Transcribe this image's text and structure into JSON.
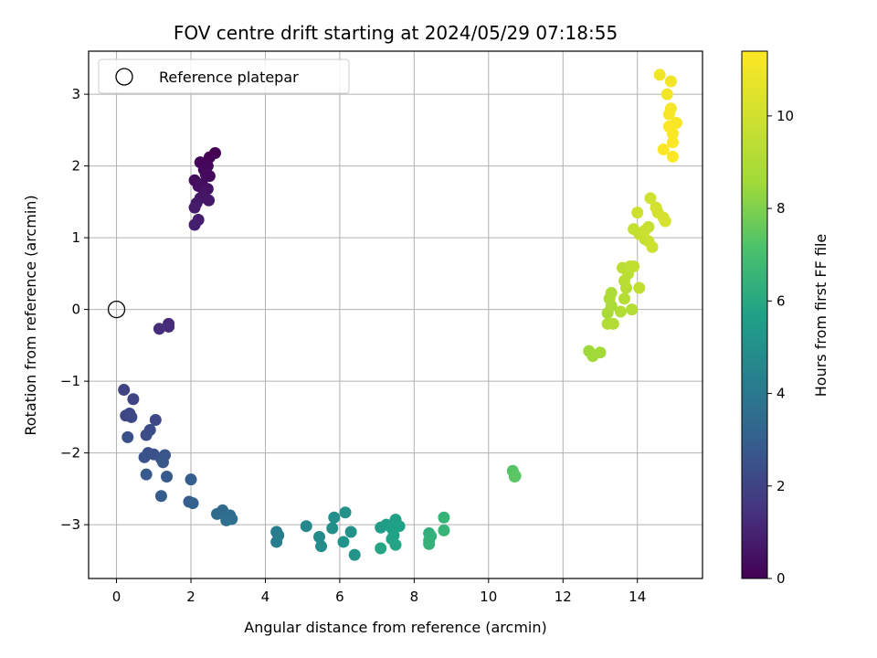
{
  "chart_data": {
    "type": "scatter",
    "title": "FOV centre drift starting at 2024/05/29 07:18:55",
    "xlabel": "Angular distance from reference (arcmin)",
    "ylabel": "Rotation from reference (arcmin)",
    "xlim": [
      -0.75,
      15.75
    ],
    "ylim": [
      -3.75,
      3.6
    ],
    "xticks": [
      "0",
      "2",
      "4",
      "6",
      "8",
      "10",
      "12",
      "14"
    ],
    "yticks": [
      "−3",
      "−2",
      "−1",
      "0",
      "1",
      "2",
      "3"
    ],
    "grid": true,
    "legend": {
      "placement": "top-left",
      "label": "Reference platepar"
    },
    "reference_point": {
      "x": 0,
      "y": 0
    },
    "colorbar": {
      "label": "Hours from first FF file",
      "range": [
        0,
        11.4
      ],
      "ticks": [
        "0",
        "2",
        "4",
        "6",
        "8",
        "10"
      ],
      "colormap": "viridis"
    },
    "points": [
      {
        "x": 2.65,
        "y": 2.18,
        "c": 0.0
      },
      {
        "x": 2.5,
        "y": 2.12,
        "c": 0.05
      },
      {
        "x": 2.25,
        "y": 2.05,
        "c": 0.1
      },
      {
        "x": 2.45,
        "y": 2.0,
        "c": 0.15
      },
      {
        "x": 2.35,
        "y": 1.95,
        "c": 0.2
      },
      {
        "x": 2.4,
        "y": 1.88,
        "c": 0.25
      },
      {
        "x": 2.5,
        "y": 1.86,
        "c": 0.3
      },
      {
        "x": 2.1,
        "y": 1.8,
        "c": 0.35
      },
      {
        "x": 2.3,
        "y": 1.75,
        "c": 0.4
      },
      {
        "x": 2.2,
        "y": 1.72,
        "c": 0.45
      },
      {
        "x": 2.45,
        "y": 1.68,
        "c": 0.5
      },
      {
        "x": 2.35,
        "y": 1.62,
        "c": 0.55
      },
      {
        "x": 2.25,
        "y": 1.55,
        "c": 0.6
      },
      {
        "x": 2.48,
        "y": 1.52,
        "c": 0.65
      },
      {
        "x": 2.15,
        "y": 1.48,
        "c": 0.7
      },
      {
        "x": 2.1,
        "y": 1.42,
        "c": 0.75
      },
      {
        "x": 2.2,
        "y": 1.25,
        "c": 0.8
      },
      {
        "x": 2.1,
        "y": 1.18,
        "c": 0.85
      },
      {
        "x": 1.4,
        "y": -0.2,
        "c": 1.2
      },
      {
        "x": 1.4,
        "y": -0.24,
        "c": 1.25
      },
      {
        "x": 1.15,
        "y": -0.27,
        "c": 1.3
      },
      {
        "x": 0.2,
        "y": -1.12,
        "c": 2.0
      },
      {
        "x": 0.45,
        "y": -1.25,
        "c": 2.05
      },
      {
        "x": 0.35,
        "y": -1.45,
        "c": 2.1
      },
      {
        "x": 0.25,
        "y": -1.48,
        "c": 2.15
      },
      {
        "x": 0.4,
        "y": -1.5,
        "c": 2.2
      },
      {
        "x": 1.05,
        "y": -1.54,
        "c": 2.25
      },
      {
        "x": 0.9,
        "y": -1.68,
        "c": 2.3
      },
      {
        "x": 0.8,
        "y": -1.75,
        "c": 2.35
      },
      {
        "x": 0.3,
        "y": -1.78,
        "c": 2.4
      },
      {
        "x": 0.85,
        "y": -2.0,
        "c": 2.45
      },
      {
        "x": 1.0,
        "y": -2.02,
        "c": 2.5
      },
      {
        "x": 0.75,
        "y": -2.06,
        "c": 2.55
      },
      {
        "x": 1.3,
        "y": -2.03,
        "c": 2.6
      },
      {
        "x": 1.2,
        "y": -2.08,
        "c": 2.65
      },
      {
        "x": 1.25,
        "y": -2.13,
        "c": 2.7
      },
      {
        "x": 1.35,
        "y": -2.33,
        "c": 2.75
      },
      {
        "x": 0.8,
        "y": -2.3,
        "c": 2.8
      },
      {
        "x": 1.2,
        "y": -2.6,
        "c": 2.85
      },
      {
        "x": 2.0,
        "y": -2.37,
        "c": 2.9
      },
      {
        "x": 1.95,
        "y": -2.68,
        "c": 2.95
      },
      {
        "x": 2.05,
        "y": -2.7,
        "c": 3.0
      },
      {
        "x": 2.7,
        "y": -2.85,
        "c": 3.4
      },
      {
        "x": 2.85,
        "y": -2.8,
        "c": 3.45
      },
      {
        "x": 3.05,
        "y": -2.87,
        "c": 3.5
      },
      {
        "x": 2.95,
        "y": -2.9,
        "c": 3.55
      },
      {
        "x": 3.1,
        "y": -2.92,
        "c": 3.6
      },
      {
        "x": 2.95,
        "y": -2.94,
        "c": 3.65
      },
      {
        "x": 4.3,
        "y": -3.1,
        "c": 4.1
      },
      {
        "x": 4.35,
        "y": -3.15,
        "c": 4.15
      },
      {
        "x": 4.3,
        "y": -3.24,
        "c": 4.2
      },
      {
        "x": 5.1,
        "y": -3.02,
        "c": 4.7
      },
      {
        "x": 5.45,
        "y": -3.17,
        "c": 4.75
      },
      {
        "x": 5.5,
        "y": -3.3,
        "c": 4.8
      },
      {
        "x": 5.85,
        "y": -2.9,
        "c": 4.9
      },
      {
        "x": 5.8,
        "y": -3.05,
        "c": 4.95
      },
      {
        "x": 6.15,
        "y": -2.83,
        "c": 5.0
      },
      {
        "x": 6.3,
        "y": -3.1,
        "c": 5.05
      },
      {
        "x": 6.1,
        "y": -3.24,
        "c": 5.1
      },
      {
        "x": 6.4,
        "y": -3.42,
        "c": 5.15
      },
      {
        "x": 7.1,
        "y": -3.04,
        "c": 5.5
      },
      {
        "x": 7.25,
        "y": -3.0,
        "c": 5.55
      },
      {
        "x": 7.5,
        "y": -2.93,
        "c": 5.6
      },
      {
        "x": 7.4,
        "y": -3.05,
        "c": 5.65
      },
      {
        "x": 7.6,
        "y": -3.02,
        "c": 5.7
      },
      {
        "x": 7.45,
        "y": -3.15,
        "c": 5.75
      },
      {
        "x": 7.4,
        "y": -3.2,
        "c": 5.8
      },
      {
        "x": 7.5,
        "y": -3.28,
        "c": 5.85
      },
      {
        "x": 7.1,
        "y": -3.33,
        "c": 5.9
      },
      {
        "x": 8.4,
        "y": -3.12,
        "c": 6.3
      },
      {
        "x": 8.45,
        "y": -3.16,
        "c": 6.35
      },
      {
        "x": 8.4,
        "y": -3.22,
        "c": 6.4
      },
      {
        "x": 8.4,
        "y": -3.27,
        "c": 6.45
      },
      {
        "x": 8.8,
        "y": -2.9,
        "c": 6.5
      },
      {
        "x": 8.8,
        "y": -3.08,
        "c": 6.55
      },
      {
        "x": 10.65,
        "y": -2.25,
        "c": 7.3
      },
      {
        "x": 10.7,
        "y": -2.33,
        "c": 7.35
      },
      {
        "x": 10.72,
        "y": -2.32,
        "c": 7.4
      },
      {
        "x": 12.7,
        "y": -0.58,
        "c": 8.5
      },
      {
        "x": 12.8,
        "y": -0.65,
        "c": 8.55
      },
      {
        "x": 13.0,
        "y": -0.6,
        "c": 8.6
      },
      {
        "x": 13.2,
        "y": -0.05,
        "c": 8.8
      },
      {
        "x": 13.3,
        "y": 0.05,
        "c": 8.85
      },
      {
        "x": 13.25,
        "y": 0.15,
        "c": 8.9
      },
      {
        "x": 13.3,
        "y": 0.23,
        "c": 8.95
      },
      {
        "x": 13.2,
        "y": -0.2,
        "c": 9.0
      },
      {
        "x": 13.35,
        "y": -0.2,
        "c": 9.05
      },
      {
        "x": 13.55,
        "y": -0.03,
        "c": 9.1
      },
      {
        "x": 13.85,
        "y": 0.0,
        "c": 9.15
      },
      {
        "x": 13.65,
        "y": 0.15,
        "c": 9.2
      },
      {
        "x": 13.7,
        "y": 0.3,
        "c": 9.25
      },
      {
        "x": 13.65,
        "y": 0.4,
        "c": 9.3
      },
      {
        "x": 13.75,
        "y": 0.5,
        "c": 9.35
      },
      {
        "x": 13.6,
        "y": 0.58,
        "c": 9.4
      },
      {
        "x": 13.8,
        "y": 0.6,
        "c": 9.45
      },
      {
        "x": 14.05,
        "y": 0.3,
        "c": 9.5
      },
      {
        "x": 13.9,
        "y": 0.6,
        "c": 9.55
      },
      {
        "x": 13.9,
        "y": 1.12,
        "c": 9.6
      },
      {
        "x": 14.05,
        "y": 1.05,
        "c": 9.65
      },
      {
        "x": 14.2,
        "y": 0.98,
        "c": 9.7
      },
      {
        "x": 14.3,
        "y": 1.15,
        "c": 9.75
      },
      {
        "x": 14.2,
        "y": 1.1,
        "c": 9.8
      },
      {
        "x": 14.3,
        "y": 0.95,
        "c": 9.85
      },
      {
        "x": 14.4,
        "y": 0.87,
        "c": 9.9
      },
      {
        "x": 14.0,
        "y": 1.35,
        "c": 9.95
      },
      {
        "x": 14.35,
        "y": 1.55,
        "c": 10.0
      },
      {
        "x": 14.5,
        "y": 1.42,
        "c": 10.05
      },
      {
        "x": 14.55,
        "y": 1.35,
        "c": 10.1
      },
      {
        "x": 14.7,
        "y": 1.28,
        "c": 10.15
      },
      {
        "x": 14.75,
        "y": 1.23,
        "c": 10.2
      },
      {
        "x": 14.6,
        "y": 3.27,
        "c": 11.0
      },
      {
        "x": 14.9,
        "y": 3.18,
        "c": 11.05
      },
      {
        "x": 14.8,
        "y": 3.0,
        "c": 11.1
      },
      {
        "x": 14.9,
        "y": 2.8,
        "c": 11.15
      },
      {
        "x": 14.85,
        "y": 2.72,
        "c": 11.2
      },
      {
        "x": 15.05,
        "y": 2.6,
        "c": 11.25
      },
      {
        "x": 14.85,
        "y": 2.55,
        "c": 11.3
      },
      {
        "x": 14.95,
        "y": 2.45,
        "c": 11.32
      },
      {
        "x": 14.95,
        "y": 2.33,
        "c": 11.35
      },
      {
        "x": 14.7,
        "y": 2.23,
        "c": 11.37
      },
      {
        "x": 14.95,
        "y": 2.13,
        "c": 11.4
      }
    ]
  }
}
